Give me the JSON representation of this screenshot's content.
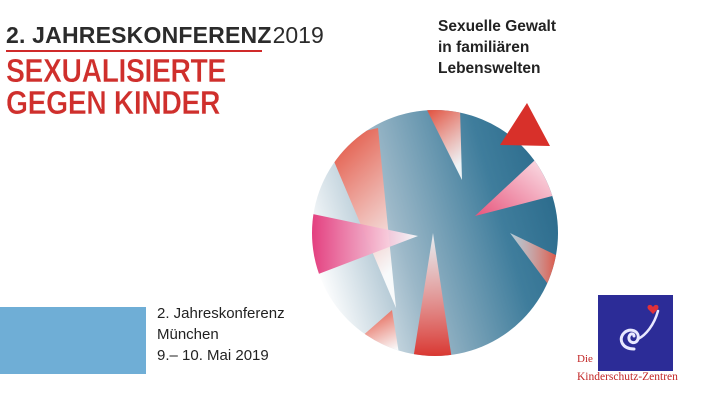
{
  "header": {
    "conference_bold": "2. JAHRESKONFERENZ",
    "conference_year": "2019"
  },
  "title": {
    "line1": "SEXUALISIERTE",
    "line2": "GEGEN KINDER",
    "color": "#cf2f2c"
  },
  "subtitle": {
    "line1": "Sexuelle Gewalt",
    "line2": "in familiären",
    "line3": "Lebenswelten"
  },
  "event": {
    "line1": "2. Jahreskonferenz",
    "line2": "München",
    "line3": "9.– 10. Mai 2019"
  },
  "logo": {
    "line1": "Die",
    "line2": "Kinderschutz-Zentren",
    "square_color": "#2c2c97",
    "text_color": "#c22626"
  },
  "graphic": {
    "circle_blue": "#2d6e8f",
    "triangle_red": "#d8302a",
    "triangle_pink": "#e2377a",
    "accent_blue": "#6faed6"
  }
}
